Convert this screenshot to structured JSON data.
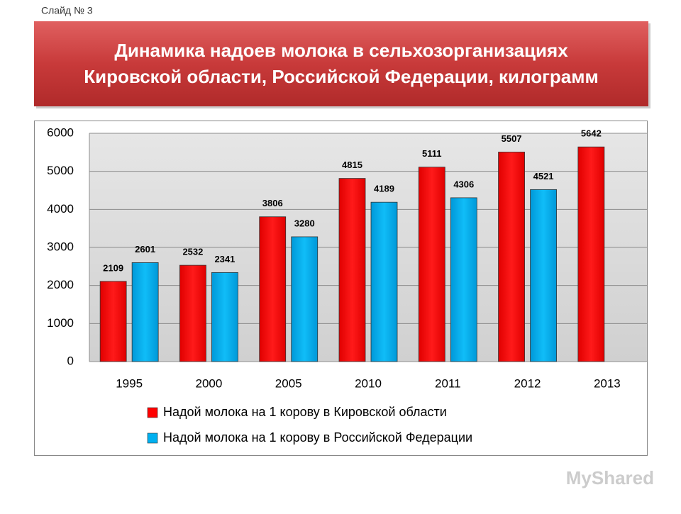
{
  "slide_label": "Слайд № 3",
  "watermark": "MyShared",
  "chart_data": {
    "type": "bar",
    "title": [
      "Динамика надоев молока в сельхозорганизациях",
      "Кировской области, Российской Федерации, килограмм"
    ],
    "categories": [
      "1995",
      "2000",
      "2005",
      "2010",
      "2011",
      "2012",
      "2013"
    ],
    "series": [
      {
        "name": "Надой молока на 1 корову в Кировской области",
        "color": "#ff0000",
        "values": [
          2109,
          2532,
          3806,
          4815,
          5111,
          5507,
          5642
        ]
      },
      {
        "name": "Надой молока на 1 корову в Российской Федерации",
        "color": "#00b0f0",
        "values": [
          2601,
          2341,
          3280,
          4189,
          4306,
          4521,
          null
        ]
      }
    ],
    "ylim": [
      0,
      6000
    ],
    "yticks": [
      0,
      1000,
      2000,
      3000,
      4000,
      5000,
      6000
    ],
    "grid": true,
    "legend": "bottom"
  }
}
